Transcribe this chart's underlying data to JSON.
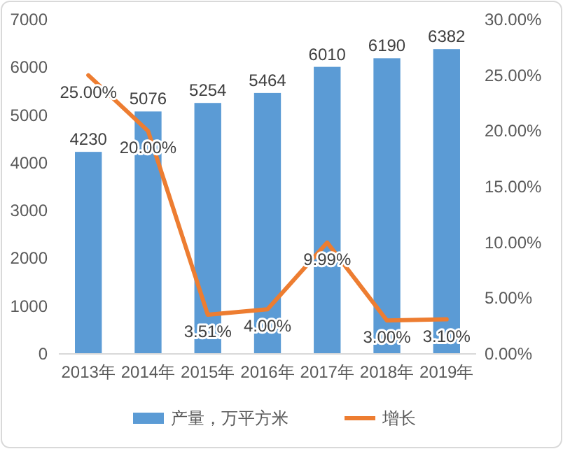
{
  "chart_data": {
    "type": "bar",
    "categories": [
      "2013年",
      "2014年",
      "2015年",
      "2016年",
      "2017年",
      "2018年",
      "2019年"
    ],
    "series": [
      {
        "name": "产量，万平方米",
        "color": "#5b9bd5",
        "values": [
          4230,
          5076,
          5254,
          5464,
          6010,
          6190,
          6382
        ]
      },
      {
        "name": "增长",
        "type": "line",
        "axis": "y2",
        "color": "#ed7d31",
        "values": [
          25.0,
          20.0,
          3.51,
          4.0,
          9.99,
          3.0,
          3.1
        ],
        "value_labels": [
          "25.00%",
          "20.00%",
          "3.51%",
          "4.00%",
          "9.99%",
          "3.00%",
          "3.10%"
        ]
      }
    ],
    "data_labels": true,
    "ylim": [
      0,
      7000
    ],
    "yticks": [
      0,
      1000,
      2000,
      3000,
      4000,
      5000,
      6000,
      7000
    ],
    "y2lim": [
      0,
      30
    ],
    "y2ticks": [
      {
        "value": 0,
        "label": "0.00%"
      },
      {
        "value": 5,
        "label": "5.00%"
      },
      {
        "value": 10,
        "label": "10.00%"
      },
      {
        "value": 15,
        "label": "15.00%"
      },
      {
        "value": 20,
        "label": "20.00%"
      },
      {
        "value": 25,
        "label": "25.00%"
      },
      {
        "value": 30,
        "label": "30.00%"
      }
    ],
    "grid": false,
    "legend": "bottom",
    "marker": "none",
    "line_style": "solid"
  }
}
